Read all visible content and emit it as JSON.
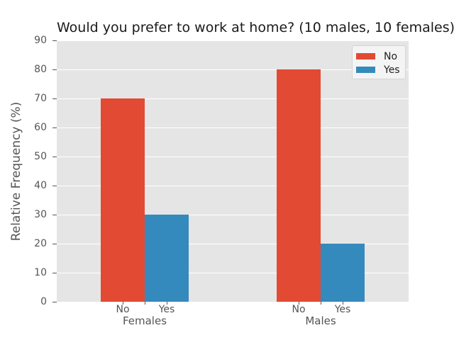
{
  "chart_data": {
    "type": "bar",
    "title": "Would you prefer to work at home? (10 males, 10 females)",
    "ylabel": "Relative Frequency (%)",
    "ylim": [
      0,
      90
    ],
    "yticks": [
      0,
      10,
      20,
      30,
      40,
      50,
      60,
      70,
      80,
      90
    ],
    "categories": [
      "Females",
      "Males"
    ],
    "series": [
      {
        "name": "No",
        "color": "#E24A33",
        "values": [
          70,
          80
        ]
      },
      {
        "name": "Yes",
        "color": "#348ABD",
        "values": [
          30,
          20
        ]
      }
    ],
    "legend_position": "upper right",
    "grid": true,
    "plot_background": "#e5e5e5",
    "grid_color": "#ffffff",
    "tick_text_color": "#555555",
    "title_color": "#1a1a1a"
  }
}
